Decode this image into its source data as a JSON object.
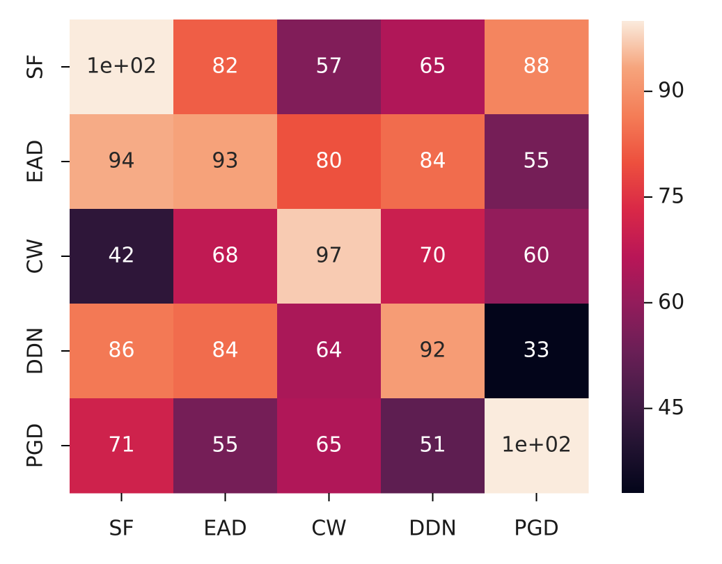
{
  "chart_data": {
    "type": "heatmap",
    "rows": [
      "SF",
      "EAD",
      "CW",
      "DDN",
      "PGD"
    ],
    "columns": [
      "SF",
      "EAD",
      "CW",
      "DDN",
      "PGD"
    ],
    "values": [
      [
        100,
        82,
        57,
        65,
        88
      ],
      [
        94,
        93,
        80,
        84,
        55
      ],
      [
        42,
        68,
        97,
        70,
        60
      ],
      [
        86,
        84,
        64,
        92,
        33
      ],
      [
        71,
        55,
        65,
        51,
        100
      ]
    ],
    "value_labels": [
      [
        "1e+02",
        "82",
        "57",
        "65",
        "88"
      ],
      [
        "94",
        "93",
        "80",
        "84",
        "55"
      ],
      [
        "42",
        "68",
        "97",
        "70",
        "60"
      ],
      [
        "86",
        "84",
        "64",
        "92",
        "33"
      ],
      [
        "71",
        "55",
        "65",
        "51",
        "1e+02"
      ]
    ],
    "colormap": "rocket",
    "colorbar": {
      "lim": [
        33,
        100
      ],
      "ticks": [
        45,
        60,
        75,
        90
      ]
    }
  }
}
